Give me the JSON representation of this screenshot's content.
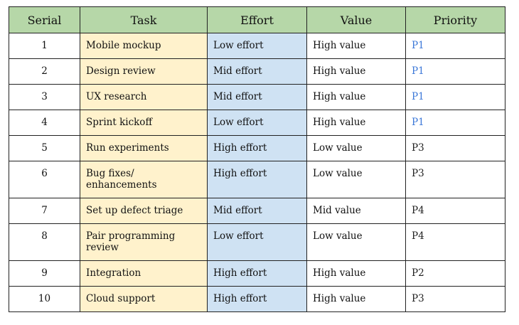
{
  "table": {
    "columns": [
      "Serial",
      "Task",
      "Effort",
      "Value",
      "Priority"
    ],
    "rows": [
      [
        "1",
        "Mobile mockup",
        "Low effort",
        "High value",
        "P1"
      ],
      [
        "2",
        "Design review",
        "Mid effort",
        "High value",
        "P1"
      ],
      [
        "3",
        "UX research",
        "Mid effort",
        "High value",
        "P1"
      ],
      [
        "4",
        "Sprint kickoff",
        "Low effort",
        "High value",
        "P1"
      ],
      [
        "5",
        "Run experiments",
        "High effort",
        "Low value",
        "P3"
      ],
      [
        "6",
        "Bug fixes/ enhancements",
        "High effort",
        "Low value",
        "P3"
      ],
      [
        "7",
        "Set up defect triage",
        "Mid effort",
        "Mid value",
        "P4"
      ],
      [
        "8",
        "Pair programming review",
        "Low effort",
        "Low value",
        "P4"
      ],
      [
        "9",
        "Integration",
        "High effort",
        "High value",
        "P2"
      ],
      [
        "10",
        "Cloud support",
        "High effort",
        "High value",
        "P3"
      ]
    ],
    "priority_colors": [
      "#3c78d8",
      "#3c78d8",
      "#3c78d8",
      "#3c78d8",
      "#222222",
      "#222222",
      "#222222",
      "#222222",
      "#222222",
      "#222222"
    ]
  }
}
